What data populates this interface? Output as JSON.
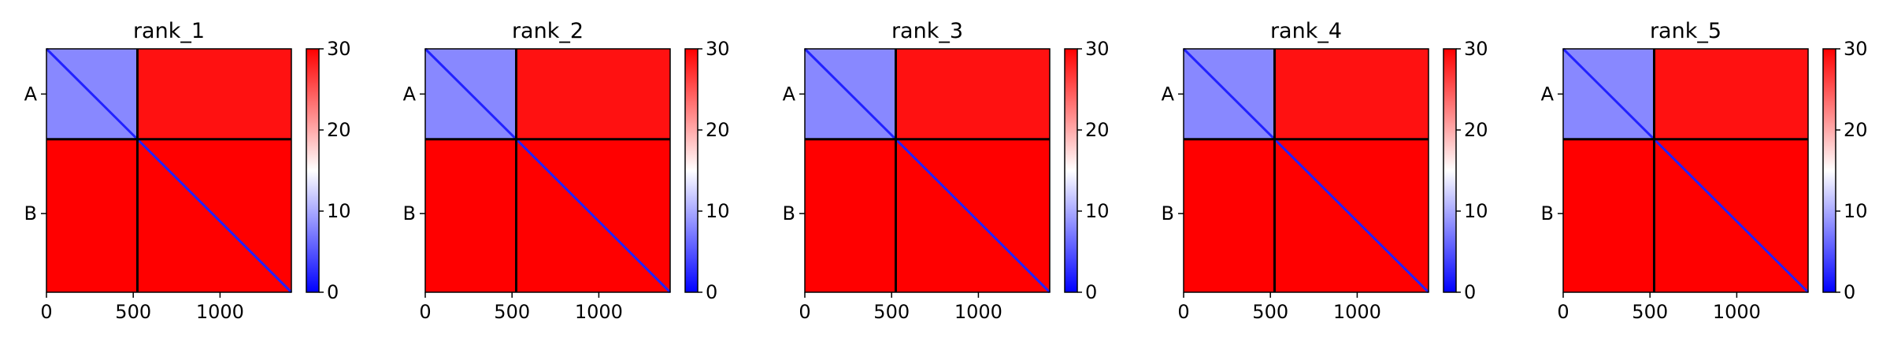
{
  "chart_data": [
    {
      "type": "heatmap",
      "title": "rank_1",
      "x_range": [
        0,
        1411
      ],
      "y_range": [
        0,
        1411
      ],
      "x_ticks": [
        0,
        500,
        1000
      ],
      "y_tick_labels": [
        {
          "label": "A",
          "center": 262
        },
        {
          "label": "B",
          "center": 955
        }
      ],
      "chain_boundary": 524,
      "colorbar": {
        "range": [
          0,
          30
        ],
        "ticks": [
          0,
          10,
          20,
          30
        ],
        "colormap": "bwr"
      },
      "blocks": [
        {
          "name": "A-A",
          "rows": [
            0,
            524
          ],
          "cols": [
            0,
            524
          ],
          "mean_value": 8
        },
        {
          "name": "A-B",
          "rows": [
            0,
            524
          ],
          "cols": [
            524,
            1411
          ],
          "mean_value": 29
        },
        {
          "name": "B-A",
          "rows": [
            524,
            1411
          ],
          "cols": [
            0,
            524
          ],
          "mean_value": 30
        },
        {
          "name": "B-B",
          "rows": [
            524,
            1411
          ],
          "cols": [
            524,
            1411
          ],
          "mean_value": 30
        }
      ],
      "diagonal_value": 2
    },
    {
      "type": "heatmap",
      "title": "rank_2",
      "x_range": [
        0,
        1411
      ],
      "y_range": [
        0,
        1411
      ],
      "x_ticks": [
        0,
        500,
        1000
      ],
      "y_tick_labels": [
        {
          "label": "A",
          "center": 262
        },
        {
          "label": "B",
          "center": 955
        }
      ],
      "chain_boundary": 524,
      "colorbar": {
        "range": [
          0,
          30
        ],
        "ticks": [
          0,
          10,
          20,
          30
        ],
        "colormap": "bwr"
      },
      "blocks": [
        {
          "name": "A-A",
          "rows": [
            0,
            524
          ],
          "cols": [
            0,
            524
          ],
          "mean_value": 8
        },
        {
          "name": "A-B",
          "rows": [
            0,
            524
          ],
          "cols": [
            524,
            1411
          ],
          "mean_value": 29
        },
        {
          "name": "B-A",
          "rows": [
            524,
            1411
          ],
          "cols": [
            0,
            524
          ],
          "mean_value": 30
        },
        {
          "name": "B-B",
          "rows": [
            524,
            1411
          ],
          "cols": [
            524,
            1411
          ],
          "mean_value": 30
        }
      ],
      "diagonal_value": 2
    },
    {
      "type": "heatmap",
      "title": "rank_3",
      "x_range": [
        0,
        1411
      ],
      "y_range": [
        0,
        1411
      ],
      "x_ticks": [
        0,
        500,
        1000
      ],
      "y_tick_labels": [
        {
          "label": "A",
          "center": 262
        },
        {
          "label": "B",
          "center": 955
        }
      ],
      "chain_boundary": 524,
      "colorbar": {
        "range": [
          0,
          30
        ],
        "ticks": [
          0,
          10,
          20,
          30
        ],
        "colormap": "bwr"
      },
      "blocks": [
        {
          "name": "A-A",
          "rows": [
            0,
            524
          ],
          "cols": [
            0,
            524
          ],
          "mean_value": 8
        },
        {
          "name": "A-B",
          "rows": [
            0,
            524
          ],
          "cols": [
            524,
            1411
          ],
          "mean_value": 29
        },
        {
          "name": "B-A",
          "rows": [
            524,
            1411
          ],
          "cols": [
            0,
            524
          ],
          "mean_value": 30
        },
        {
          "name": "B-B",
          "rows": [
            524,
            1411
          ],
          "cols": [
            524,
            1411
          ],
          "mean_value": 30
        }
      ],
      "diagonal_value": 2
    },
    {
      "type": "heatmap",
      "title": "rank_4",
      "x_range": [
        0,
        1411
      ],
      "y_range": [
        0,
        1411
      ],
      "x_ticks": [
        0,
        500,
        1000
      ],
      "y_tick_labels": [
        {
          "label": "A",
          "center": 262
        },
        {
          "label": "B",
          "center": 955
        }
      ],
      "chain_boundary": 524,
      "colorbar": {
        "range": [
          0,
          30
        ],
        "ticks": [
          0,
          10,
          20,
          30
        ],
        "colormap": "bwr"
      },
      "blocks": [
        {
          "name": "A-A",
          "rows": [
            0,
            524
          ],
          "cols": [
            0,
            524
          ],
          "mean_value": 8
        },
        {
          "name": "A-B",
          "rows": [
            0,
            524
          ],
          "cols": [
            524,
            1411
          ],
          "mean_value": 29
        },
        {
          "name": "B-A",
          "rows": [
            524,
            1411
          ],
          "cols": [
            0,
            524
          ],
          "mean_value": 30
        },
        {
          "name": "B-B",
          "rows": [
            524,
            1411
          ],
          "cols": [
            524,
            1411
          ],
          "mean_value": 30
        }
      ],
      "diagonal_value": 2
    },
    {
      "type": "heatmap",
      "title": "rank_5",
      "x_range": [
        0,
        1411
      ],
      "y_range": [
        0,
        1411
      ],
      "x_ticks": [
        0,
        500,
        1000
      ],
      "y_tick_labels": [
        {
          "label": "A",
          "center": 262
        },
        {
          "label": "B",
          "center": 955
        }
      ],
      "chain_boundary": 524,
      "colorbar": {
        "range": [
          0,
          30
        ],
        "ticks": [
          0,
          10,
          20,
          30
        ],
        "colormap": "bwr"
      },
      "blocks": [
        {
          "name": "A-A",
          "rows": [
            0,
            524
          ],
          "cols": [
            0,
            524
          ],
          "mean_value": 8
        },
        {
          "name": "A-B",
          "rows": [
            0,
            524
          ],
          "cols": [
            524,
            1411
          ],
          "mean_value": 29
        },
        {
          "name": "B-A",
          "rows": [
            524,
            1411
          ],
          "cols": [
            0,
            524
          ],
          "mean_value": 30
        },
        {
          "name": "B-B",
          "rows": [
            524,
            1411
          ],
          "cols": [
            524,
            1411
          ],
          "mean_value": 30
        }
      ],
      "diagonal_value": 2
    }
  ]
}
